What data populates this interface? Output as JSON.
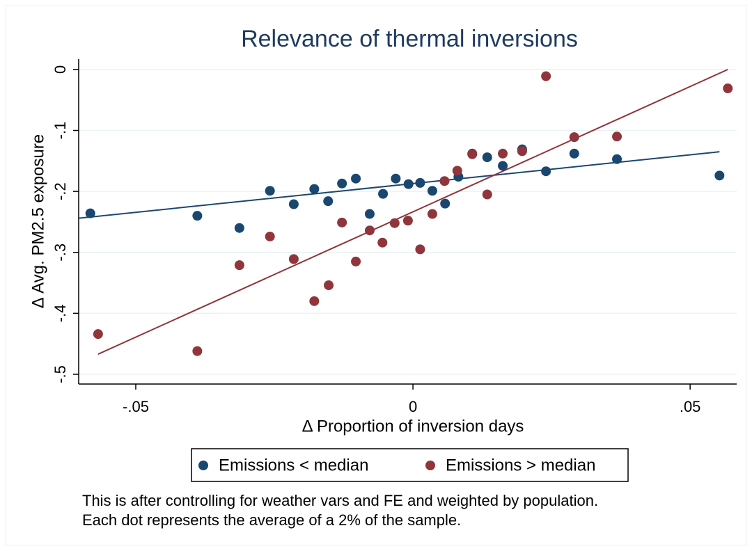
{
  "chart_data": {
    "type": "scatter",
    "title": "Relevance of thermal inversions",
    "x_label": "Δ Proportion of inversion days",
    "y_label": "Δ Avg. PM2.5 exposure",
    "notes": [
      "This is after controlling for weather vars and FE and weighted by population.",
      "Each dot represents the average of a 2% of the sample."
    ],
    "xlim": [
      -0.0603,
      0.0584
    ],
    "ylim": [
      -0.516,
      0.017
    ],
    "xticks": [
      {
        "value": -0.05,
        "label": "-.05"
      },
      0,
      {
        "value": 0.05,
        "label": ".05"
      }
    ],
    "yticks": [
      0,
      {
        "value": -0.1,
        "label": "-.1"
      },
      {
        "value": -0.2,
        "label": "-.2"
      },
      {
        "value": -0.3,
        "label": "-.3"
      },
      {
        "value": -0.4,
        "label": "-.4"
      },
      {
        "value": -0.5,
        "label": "-.5"
      }
    ],
    "grid": true,
    "series": [
      {
        "name": "Emissions < median",
        "color": "#1a476f",
        "x": [
          -0.0582,
          -0.0389,
          -0.0313,
          -0.0258,
          -0.0215,
          -0.0178,
          -0.0153,
          -0.0128,
          -0.0103,
          -0.0078,
          -0.0054,
          -0.0031,
          -0.0008,
          0.0013,
          0.0035,
          0.0058,
          0.0082,
          0.0107,
          0.0134,
          0.0162,
          0.0197,
          0.024,
          0.0291,
          0.0368,
          0.0553
        ],
        "values": [
          -0.236,
          -0.24,
          -0.26,
          -0.199,
          -0.221,
          -0.196,
          -0.216,
          -0.187,
          -0.179,
          -0.237,
          -0.204,
          -0.179,
          -0.188,
          -0.186,
          -0.199,
          -0.22,
          -0.176,
          -0.138,
          -0.144,
          -0.158,
          -0.131,
          -0.167,
          -0.138,
          -0.147,
          -0.174
        ]
      },
      {
        "name": "Emissions > median",
        "color": "#90353b",
        "x": [
          -0.0568,
          -0.0389,
          -0.0313,
          -0.0258,
          -0.0215,
          -0.0178,
          -0.0152,
          -0.0128,
          -0.0103,
          -0.0078,
          -0.0055,
          -0.0033,
          -0.0009,
          0.0013,
          0.0035,
          0.0057,
          0.008,
          0.0107,
          0.0134,
          0.0162,
          0.0197,
          0.024,
          0.0291,
          0.0368,
          0.0568
        ],
        "values": [
          -0.434,
          -0.462,
          -0.321,
          -0.274,
          -0.311,
          -0.38,
          -0.354,
          -0.251,
          -0.315,
          -0.264,
          -0.284,
          -0.252,
          -0.248,
          -0.295,
          -0.237,
          -0.183,
          -0.166,
          -0.139,
          -0.205,
          -0.138,
          -0.134,
          -0.011,
          -0.111,
          -0.11,
          -0.031
        ]
      }
    ],
    "fit_lines": [
      {
        "color": "#1a476f",
        "x": [
          -0.0603,
          0.0553
        ],
        "values": [
          -0.244,
          -0.135
        ]
      },
      {
        "color": "#90353b",
        "x": [
          -0.0568,
          0.0568
        ],
        "values": [
          -0.467,
          0.0
        ]
      }
    ]
  }
}
